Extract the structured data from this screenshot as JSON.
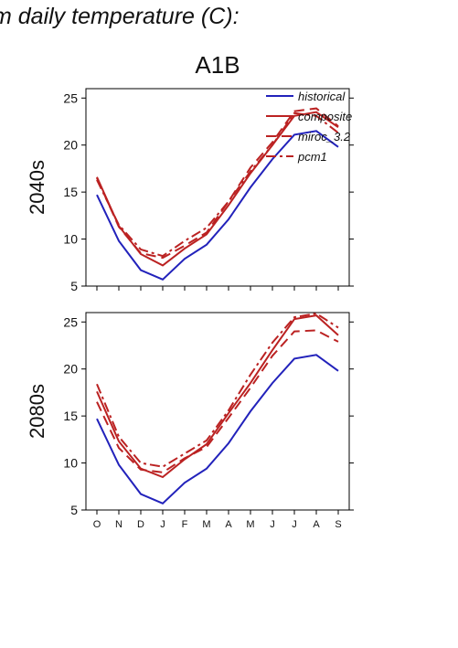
{
  "title": "m daily temperature (C):",
  "chart_data": {
    "type": "line",
    "title": "A1B",
    "categories": [
      "O",
      "N",
      "D",
      "J",
      "F",
      "M",
      "A",
      "M",
      "J",
      "J",
      "A",
      "S"
    ],
    "ylim": [
      5,
      26
    ],
    "yticks": [
      5,
      10,
      15,
      20,
      25
    ],
    "legend_position": "top-right",
    "legend": [
      {
        "name": "historical",
        "color": "#2222bb",
        "dash": "solid"
      },
      {
        "name": "composite",
        "color": "#bb2222",
        "dash": "solid"
      },
      {
        "name": "miroc_3.2",
        "color": "#bb2222",
        "dash": "dash"
      },
      {
        "name": "pcm1",
        "color": "#bb2222",
        "dash": "dashdot"
      }
    ],
    "panels": [
      {
        "row_label": "2040s",
        "series": [
          {
            "name": "historical",
            "values": [
              14.7,
              9.8,
              6.7,
              5.7,
              7.9,
              9.4,
              12.1,
              15.5,
              18.5,
              21.1,
              21.5,
              19.8
            ]
          },
          {
            "name": "composite",
            "values": [
              16.6,
              11.4,
              8.4,
              7.2,
              9.0,
              10.5,
              13.6,
              17.0,
              20.0,
              23.1,
              23.5,
              21.9
            ]
          },
          {
            "name": "miroc_3.2",
            "values": [
              16.5,
              11.3,
              8.5,
              8.0,
              9.3,
              10.7,
              14.0,
              17.6,
              20.3,
              23.6,
              23.9,
              22.0
            ]
          },
          {
            "name": "pcm1",
            "values": [
              16.3,
              11.5,
              8.9,
              8.2,
              9.8,
              11.2,
              14.0,
              17.2,
              20.0,
              23.4,
              23.1,
              21.3
            ]
          }
        ]
      },
      {
        "row_label": "2080s",
        "series": [
          {
            "name": "historical",
            "values": [
              14.7,
              9.8,
              6.7,
              5.7,
              7.9,
              9.4,
              12.1,
              15.5,
              18.5,
              21.1,
              21.5,
              19.8
            ]
          },
          {
            "name": "composite",
            "values": [
              17.6,
              12.3,
              9.4,
              8.5,
              10.4,
              12.0,
              15.3,
              18.5,
              22.0,
              25.3,
              25.7,
              23.6
            ]
          },
          {
            "name": "miroc_3.2",
            "values": [
              16.5,
              11.6,
              9.3,
              9.0,
              10.5,
              11.7,
              14.8,
              18.0,
              21.4,
              24.0,
              24.1,
              22.9
            ]
          },
          {
            "name": "pcm1",
            "values": [
              18.4,
              12.8,
              10.0,
              9.6,
              11.0,
              12.4,
              15.6,
              19.4,
              22.8,
              25.5,
              25.9,
              24.4
            ]
          }
        ]
      }
    ]
  }
}
